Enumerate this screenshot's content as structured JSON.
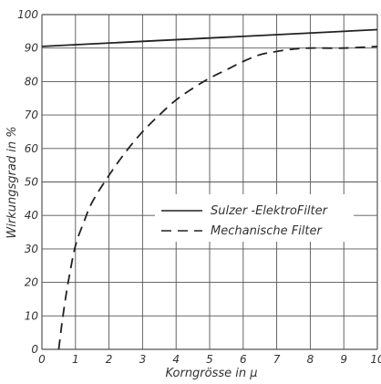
{
  "chart_data": {
    "type": "line",
    "title": "",
    "xlabel": "Korngrösse in μ",
    "ylabel": "Wirkungsgrad in %",
    "xlim": [
      0,
      10
    ],
    "ylim": [
      0,
      100
    ],
    "x_ticks": [
      "0",
      "1",
      "2",
      "3",
      "4",
      "5",
      "6",
      "7",
      "8",
      "9",
      "10"
    ],
    "y_ticks": [
      "0",
      "10",
      "20",
      "30",
      "40",
      "50",
      "60",
      "70",
      "80",
      "90",
      "100"
    ],
    "grid": true,
    "legend_position": "center-right",
    "series": [
      {
        "name": "Sulzer -ElektroFilter",
        "style": "solid",
        "color": "#222222",
        "x": [
          0,
          10
        ],
        "y": [
          90.5,
          95.5
        ]
      },
      {
        "name": "Mechanische Filter",
        "style": "dashed",
        "color": "#222222",
        "x": [
          0.5,
          0.55,
          0.6,
          0.7,
          0.8,
          1,
          1.25,
          1.5,
          2,
          2.5,
          3,
          3.5,
          4,
          4.5,
          5,
          5.5,
          6,
          6.5,
          7,
          7.5,
          8,
          9,
          10
        ],
        "y": [
          0,
          4,
          8,
          15,
          21,
          31,
          38,
          44,
          52,
          59,
          65,
          70,
          74.5,
          78,
          81,
          83.5,
          86,
          88,
          89,
          89.7,
          90,
          90,
          90.5
        ]
      }
    ]
  }
}
